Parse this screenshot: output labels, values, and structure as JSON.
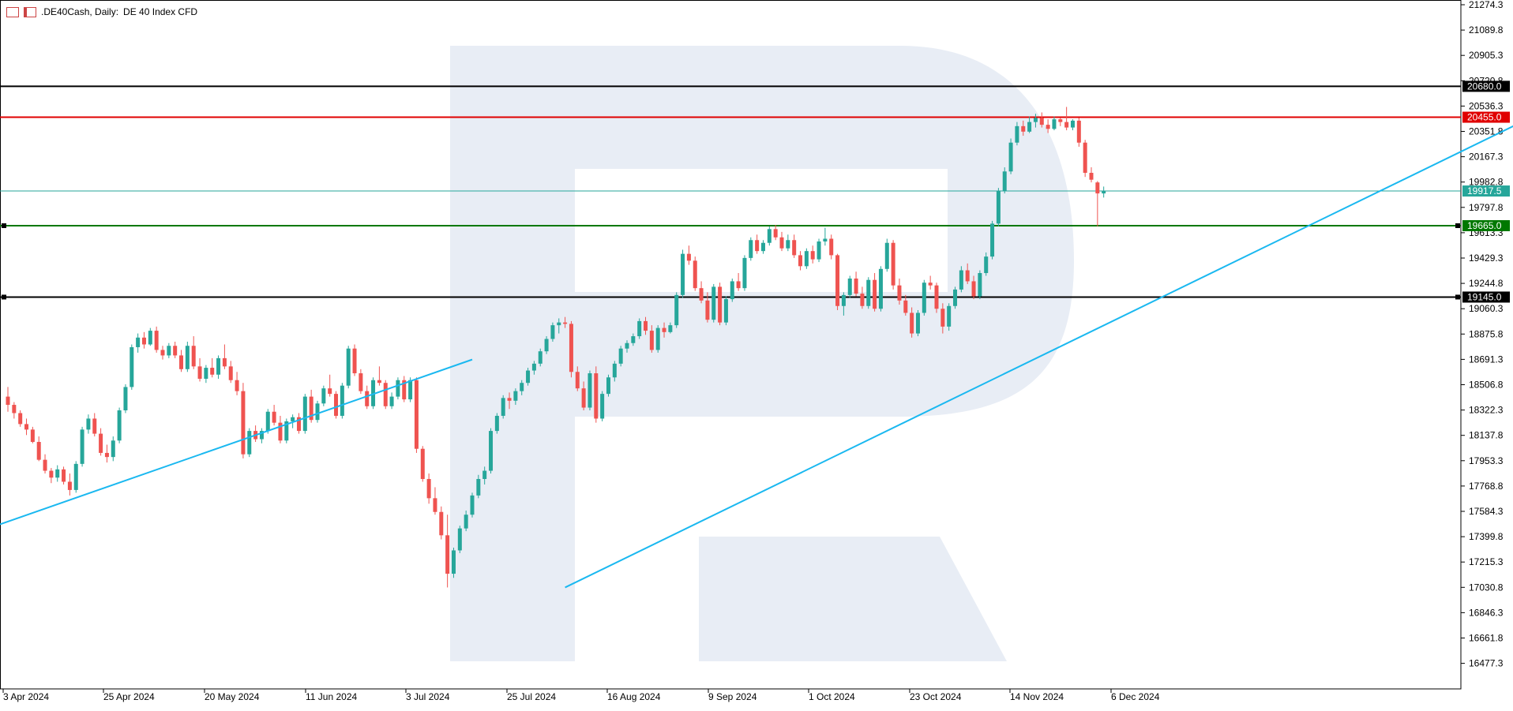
{
  "header": {
    "symbol": ".DE40Cash, Daily:",
    "description": "DE 40 Index CFD",
    "icon1": "menu-list-icon",
    "icon2": "chart-type-icon"
  },
  "colors": {
    "bull": "#26a69a",
    "bear": "#ef5350",
    "trend": "#1ab8f0",
    "current": "#26a69a",
    "resistance_red": "#e00000",
    "support_green": "#007800",
    "black_level": "#000000",
    "watermark": "#e8edf5"
  },
  "chart_data": {
    "type": "candlestick",
    "ylim": [
      16350,
      21274.3
    ],
    "y_ticks": [
      "21274.3",
      "21089.8",
      "20905.3",
      "20720.8",
      "20536.3",
      "20351.8",
      "20167.3",
      "19982.8",
      "19797.8",
      "19613.3",
      "19429.3",
      "19244.8",
      "19060.3",
      "18875.8",
      "18691.3",
      "18506.8",
      "18322.3",
      "18137.8",
      "17953.3",
      "17768.8",
      "17584.3",
      "17399.8",
      "17215.3",
      "17030.8",
      "16846.3",
      "16661.8",
      "16477.3"
    ],
    "x_ticks": [
      "3 Apr 2024",
      "25 Apr 2024",
      "20 May 2024",
      "11 Jun 2024",
      "3 Jul 2024",
      "25 Jul 2024",
      "16 Aug 2024",
      "9 Sep 2024",
      "1 Oct 2024",
      "23 Oct 2024",
      "14 Nov 2024",
      "6 Dec 2024"
    ],
    "levels": [
      {
        "value": 20680.0,
        "label": "20680.0",
        "color": "#000000"
      },
      {
        "value": 20455.0,
        "label": "20455.0",
        "color": "#e00000"
      },
      {
        "value": 19917.5,
        "label": "19917.5",
        "color": "#26a69a"
      },
      {
        "value": 19665.0,
        "label": "19665.0",
        "color": "#007800"
      },
      {
        "value": 19145.0,
        "label": "19145.0",
        "color": "#000000"
      }
    ],
    "trendlines": [
      {
        "from": [
          0,
          17490
        ],
        "to": [
          75,
          18690
        ]
      },
      {
        "from": [
          90,
          17030
        ],
        "to": [
          250,
          20540
        ]
      }
    ],
    "ohlc": [
      [
        18420,
        18490,
        18310,
        18360
      ],
      [
        18360,
        18380,
        18260,
        18300
      ],
      [
        18300,
        18320,
        18200,
        18220
      ],
      [
        18220,
        18260,
        18140,
        18180
      ],
      [
        18180,
        18200,
        18080,
        18090
      ],
      [
        18090,
        18130,
        17950,
        17960
      ],
      [
        17960,
        18000,
        17860,
        17880
      ],
      [
        17880,
        17900,
        17790,
        17830
      ],
      [
        17830,
        17920,
        17800,
        17890
      ],
      [
        17890,
        17910,
        17780,
        17800
      ],
      [
        17800,
        17860,
        17700,
        17740
      ],
      [
        17740,
        17950,
        17720,
        17930
      ],
      [
        17930,
        18200,
        17910,
        18180
      ],
      [
        18180,
        18290,
        18150,
        18260
      ],
      [
        18260,
        18300,
        18130,
        18150
      ],
      [
        18150,
        18190,
        17990,
        18010
      ],
      [
        18010,
        18070,
        17940,
        17980
      ],
      [
        17980,
        18130,
        17950,
        18100
      ],
      [
        18100,
        18340,
        18080,
        18320
      ],
      [
        18320,
        18510,
        18300,
        18490
      ],
      [
        18490,
        18800,
        18470,
        18780
      ],
      [
        18780,
        18880,
        18740,
        18850
      ],
      [
        18850,
        18890,
        18770,
        18800
      ],
      [
        18800,
        18920,
        18790,
        18900
      ],
      [
        18900,
        18930,
        18740,
        18760
      ],
      [
        18760,
        18790,
        18690,
        18720
      ],
      [
        18720,
        18810,
        18700,
        18790
      ],
      [
        18790,
        18820,
        18700,
        18720
      ],
      [
        18720,
        18760,
        18600,
        18620
      ],
      [
        18620,
        18820,
        18600,
        18790
      ],
      [
        18790,
        18860,
        18620,
        18640
      ],
      [
        18640,
        18700,
        18530,
        18550
      ],
      [
        18550,
        18650,
        18520,
        18630
      ],
      [
        18630,
        18700,
        18560,
        18580
      ],
      [
        18580,
        18720,
        18550,
        18700
      ],
      [
        18700,
        18800,
        18620,
        18640
      ],
      [
        18640,
        18680,
        18520,
        18540
      ],
      [
        18540,
        18600,
        18430,
        18460
      ],
      [
        18460,
        18520,
        17970,
        18000
      ],
      [
        18000,
        18190,
        17980,
        18170
      ],
      [
        18170,
        18210,
        18090,
        18110
      ],
      [
        18110,
        18190,
        18080,
        18170
      ],
      [
        18170,
        18330,
        18150,
        18310
      ],
      [
        18310,
        18360,
        18210,
        18230
      ],
      [
        18230,
        18280,
        18080,
        18100
      ],
      [
        18100,
        18260,
        18080,
        18240
      ],
      [
        18240,
        18290,
        18190,
        18270
      ],
      [
        18270,
        18300,
        18150,
        18170
      ],
      [
        18170,
        18440,
        18150,
        18420
      ],
      [
        18420,
        18470,
        18230,
        18250
      ],
      [
        18250,
        18390,
        18230,
        18370
      ],
      [
        18370,
        18500,
        18350,
        18480
      ],
      [
        18480,
        18580,
        18420,
        18440
      ],
      [
        18440,
        18460,
        18260,
        18280
      ],
      [
        18280,
        18520,
        18260,
        18500
      ],
      [
        18500,
        18790,
        18480,
        18770
      ],
      [
        18770,
        18800,
        18570,
        18590
      ],
      [
        18590,
        18620,
        18440,
        18460
      ],
      [
        18460,
        18500,
        18330,
        18350
      ],
      [
        18350,
        18560,
        18330,
        18540
      ],
      [
        18540,
        18640,
        18500,
        18520
      ],
      [
        18520,
        18540,
        18330,
        18350
      ],
      [
        18350,
        18450,
        18330,
        18420
      ],
      [
        18420,
        18560,
        18400,
        18540
      ],
      [
        18540,
        18570,
        18380,
        18400
      ],
      [
        18400,
        18560,
        18380,
        18540
      ],
      [
        18540,
        18560,
        18010,
        18040
      ],
      [
        18040,
        18060,
        17800,
        17820
      ],
      [
        17820,
        17860,
        17640,
        17680
      ],
      [
        17680,
        17760,
        17560,
        17580
      ],
      [
        17580,
        17620,
        17380,
        17410
      ],
      [
        17410,
        17560,
        17030,
        17130
      ],
      [
        17130,
        17320,
        17100,
        17300
      ],
      [
        17300,
        17480,
        17280,
        17460
      ],
      [
        17460,
        17590,
        17440,
        17560
      ],
      [
        17560,
        17720,
        17540,
        17700
      ],
      [
        17700,
        17850,
        17680,
        17820
      ],
      [
        17820,
        17910,
        17780,
        17880
      ],
      [
        17880,
        18190,
        17860,
        18170
      ],
      [
        18170,
        18300,
        18150,
        18280
      ],
      [
        18280,
        18430,
        18260,
        18410
      ],
      [
        18410,
        18450,
        18330,
        18390
      ],
      [
        18390,
        18480,
        18360,
        18460
      ],
      [
        18460,
        18540,
        18430,
        18520
      ],
      [
        18520,
        18630,
        18500,
        18610
      ],
      [
        18610,
        18680,
        18580,
        18660
      ],
      [
        18660,
        18770,
        18640,
        18750
      ],
      [
        18750,
        18860,
        18730,
        18840
      ],
      [
        18840,
        18960,
        18820,
        18940
      ],
      [
        18940,
        18990,
        18880,
        18960
      ],
      [
        18960,
        19000,
        18920,
        18950
      ],
      [
        18950,
        18970,
        18560,
        18600
      ],
      [
        18600,
        18640,
        18460,
        18480
      ],
      [
        18480,
        18530,
        18320,
        18340
      ],
      [
        18340,
        18610,
        18320,
        18590
      ],
      [
        18590,
        18640,
        18230,
        18260
      ],
      [
        18260,
        18460,
        18240,
        18440
      ],
      [
        18440,
        18580,
        18420,
        18560
      ],
      [
        18560,
        18680,
        18530,
        18660
      ],
      [
        18660,
        18790,
        18640,
        18770
      ],
      [
        18770,
        18830,
        18740,
        18810
      ],
      [
        18810,
        18880,
        18790,
        18860
      ],
      [
        18860,
        18990,
        18840,
        18970
      ],
      [
        18970,
        19000,
        18870,
        18900
      ],
      [
        18900,
        18940,
        18740,
        18760
      ],
      [
        18760,
        18940,
        18740,
        18920
      ],
      [
        18920,
        18960,
        18850,
        18890
      ],
      [
        18890,
        18960,
        18880,
        18940
      ],
      [
        18940,
        19180,
        18920,
        19160
      ],
      [
        19160,
        19490,
        19140,
        19460
      ],
      [
        19460,
        19520,
        19380,
        19410
      ],
      [
        19410,
        19440,
        19190,
        19210
      ],
      [
        19210,
        19260,
        19100,
        19120
      ],
      [
        19120,
        19180,
        18960,
        18980
      ],
      [
        18980,
        19240,
        18960,
        19220
      ],
      [
        19220,
        19250,
        18940,
        18960
      ],
      [
        18960,
        19150,
        18940,
        19130
      ],
      [
        19130,
        19280,
        19110,
        19260
      ],
      [
        19260,
        19320,
        19190,
        19210
      ],
      [
        19210,
        19450,
        19190,
        19430
      ],
      [
        19430,
        19580,
        19410,
        19560
      ],
      [
        19560,
        19600,
        19460,
        19480
      ],
      [
        19480,
        19560,
        19460,
        19540
      ],
      [
        19540,
        19660,
        19520,
        19640
      ],
      [
        19640,
        19670,
        19560,
        19580
      ],
      [
        19580,
        19620,
        19480,
        19500
      ],
      [
        19500,
        19600,
        19480,
        19560
      ],
      [
        19560,
        19600,
        19430,
        19450
      ],
      [
        19450,
        19480,
        19340,
        19370
      ],
      [
        19370,
        19500,
        19350,
        19480
      ],
      [
        19480,
        19520,
        19390,
        19420
      ],
      [
        19420,
        19570,
        19400,
        19550
      ],
      [
        19550,
        19650,
        19520,
        19570
      ],
      [
        19570,
        19600,
        19420,
        19450
      ],
      [
        19450,
        19460,
        19050,
        19080
      ],
      [
        19080,
        19180,
        19010,
        19160
      ],
      [
        19160,
        19300,
        19140,
        19280
      ],
      [
        19280,
        19330,
        19150,
        19170
      ],
      [
        19170,
        19220,
        19060,
        19080
      ],
      [
        19080,
        19290,
        19060,
        19270
      ],
      [
        19270,
        19320,
        19040,
        19060
      ],
      [
        19060,
        19370,
        19040,
        19350
      ],
      [
        19350,
        19570,
        19330,
        19540
      ],
      [
        19540,
        19560,
        19200,
        19230
      ],
      [
        19230,
        19280,
        19090,
        19120
      ],
      [
        19120,
        19160,
        19010,
        19030
      ],
      [
        19030,
        19070,
        18850,
        18880
      ],
      [
        18880,
        19050,
        18860,
        19030
      ],
      [
        19030,
        19270,
        19010,
        19250
      ],
      [
        19250,
        19300,
        19200,
        19230
      ],
      [
        19230,
        19250,
        19030,
        19060
      ],
      [
        19060,
        19100,
        18880,
        18930
      ],
      [
        18930,
        19100,
        18900,
        19080
      ],
      [
        19080,
        19220,
        19060,
        19200
      ],
      [
        19200,
        19370,
        19180,
        19340
      ],
      [
        19340,
        19390,
        19240,
        19260
      ],
      [
        19260,
        19300,
        19130,
        19150
      ],
      [
        19150,
        19340,
        19130,
        19320
      ],
      [
        19320,
        19470,
        19300,
        19440
      ],
      [
        19440,
        19700,
        19420,
        19680
      ],
      [
        19680,
        19940,
        19660,
        19920
      ],
      [
        19920,
        20090,
        19900,
        20060
      ],
      [
        20060,
        20300,
        20040,
        20270
      ],
      [
        20270,
        20420,
        20250,
        20390
      ],
      [
        20390,
        20430,
        20320,
        20350
      ],
      [
        20350,
        20460,
        20340,
        20420
      ],
      [
        20420,
        20480,
        20380,
        20450
      ],
      [
        20450,
        20490,
        20380,
        20400
      ],
      [
        20400,
        20440,
        20340,
        20370
      ],
      [
        20370,
        20460,
        20360,
        20440
      ],
      [
        20440,
        20450,
        20390,
        20420
      ],
      [
        20420,
        20530,
        20360,
        20380
      ],
      [
        20380,
        20440,
        20360,
        20430
      ],
      [
        20430,
        20450,
        20240,
        20270
      ],
      [
        20270,
        20290,
        20020,
        20050
      ],
      [
        20050,
        20090,
        19980,
        20000
      ],
      [
        19980,
        19990,
        19660,
        19900
      ],
      [
        19900,
        19950,
        19870,
        19917.5
      ]
    ]
  }
}
